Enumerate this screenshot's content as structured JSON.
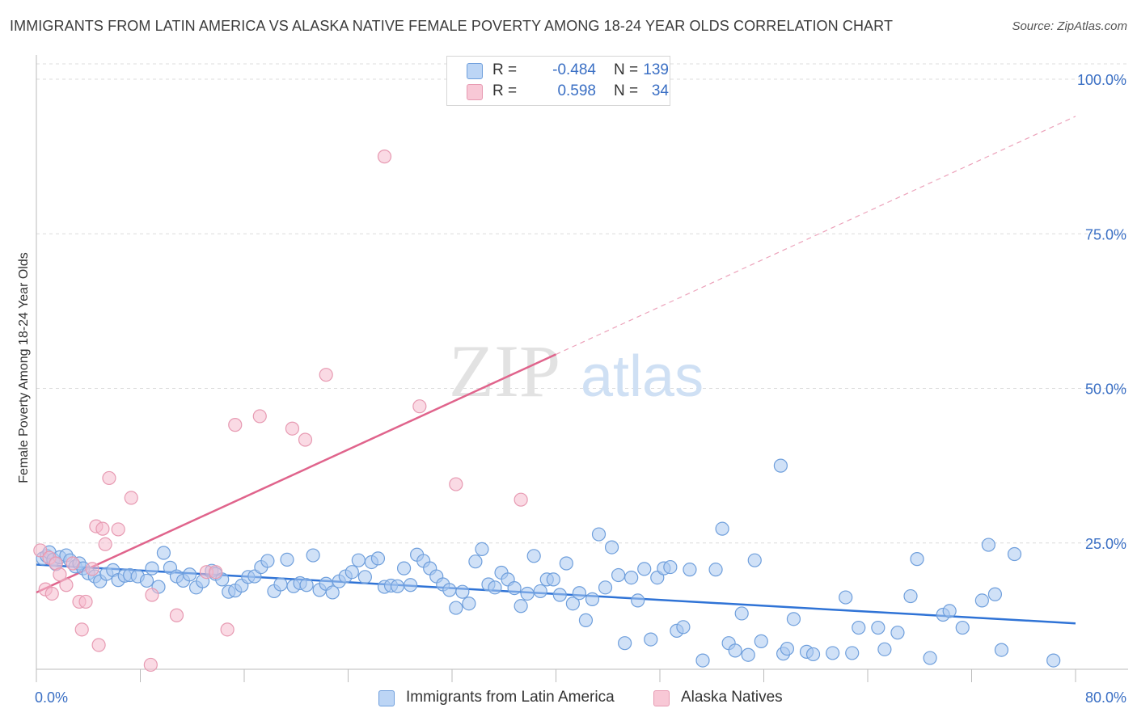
{
  "title": "IMMIGRANTS FROM LATIN AMERICA VS ALASKA NATIVE FEMALE POVERTY AMONG 18-24 YEAR OLDS CORRELATION CHART",
  "source": "Source: ZipAtlas.com",
  "watermark": {
    "zip": "ZIP",
    "atlas": "atlas"
  },
  "legend_top": {
    "rows": [
      {
        "r_label": "R =",
        "r_value": "-0.484",
        "n_label": "N =",
        "n_value": "139"
      },
      {
        "r_label": "R =",
        "r_value": "0.598",
        "n_label": "N =",
        "n_value": "34"
      }
    ]
  },
  "colors": {
    "blue_fill": "#a9c8f0",
    "blue_stroke": "#6f9fdc",
    "blue_line": "#2f73d6",
    "pink_fill": "#f6bccd",
    "pink_stroke": "#e79ab2",
    "pink_line": "#e0648c",
    "tick_label": "#3a6fc4",
    "grid": "#dcdcdc"
  },
  "chart_data": {
    "type": "scatter",
    "title": "IMMIGRANTS FROM LATIN AMERICA VS ALASKA NATIVE FEMALE POVERTY AMONG 18-24 YEAR OLDS CORRELATION CHART",
    "xlabel": "",
    "ylabel": "Female Poverty Among 18-24 Year Olds",
    "xlim": [
      0,
      80
    ],
    "ylim": [
      0,
      100
    ],
    "x_tick_labels": [
      "0.0%",
      "80.0%"
    ],
    "y_ticks": [
      25,
      50,
      75,
      100
    ],
    "y_tick_labels": [
      "25.0%",
      "50.0%",
      "75.0%",
      "100.0%"
    ],
    "grid": true,
    "legend_position": "bottom",
    "series": [
      {
        "name": "Immigrants from Latin America",
        "color": "#a9c8f0",
        "r": -0.484,
        "n": 139,
        "trend": {
          "x": [
            0,
            80
          ],
          "y": [
            21.5,
            12.0
          ]
        },
        "points": [
          [
            0.5,
            22.5
          ],
          [
            0.8,
            22.9
          ],
          [
            1.0,
            23.5
          ],
          [
            1.3,
            22.3
          ],
          [
            1.5,
            21.6
          ],
          [
            1.8,
            22.7
          ],
          [
            2.3,
            23.0
          ],
          [
            2.6,
            22.2
          ],
          [
            3.0,
            21.2
          ],
          [
            3.3,
            21.7
          ],
          [
            3.6,
            20.9
          ],
          [
            4.0,
            20.1
          ],
          [
            4.5,
            19.6
          ],
          [
            4.9,
            18.8
          ],
          [
            5.4,
            20.0
          ],
          [
            5.9,
            20.6
          ],
          [
            6.3,
            19.0
          ],
          [
            6.8,
            19.7
          ],
          [
            7.2,
            19.8
          ],
          [
            7.8,
            19.6
          ],
          [
            8.5,
            18.9
          ],
          [
            8.9,
            20.9
          ],
          [
            9.4,
            17.9
          ],
          [
            9.8,
            23.4
          ],
          [
            10.3,
            21.0
          ],
          [
            10.8,
            19.6
          ],
          [
            11.3,
            18.9
          ],
          [
            11.8,
            19.9
          ],
          [
            12.3,
            17.8
          ],
          [
            12.8,
            18.8
          ],
          [
            13.5,
            20.5
          ],
          [
            13.8,
            20.0
          ],
          [
            14.3,
            19.1
          ],
          [
            14.8,
            17.1
          ],
          [
            15.3,
            17.3
          ],
          [
            15.8,
            18.1
          ],
          [
            16.3,
            19.5
          ],
          [
            16.8,
            19.6
          ],
          [
            17.3,
            21.1
          ],
          [
            17.8,
            22.1
          ],
          [
            18.3,
            17.2
          ],
          [
            18.8,
            18.3
          ],
          [
            19.3,
            22.3
          ],
          [
            19.8,
            18.0
          ],
          [
            20.3,
            18.5
          ],
          [
            20.8,
            18.2
          ],
          [
            21.3,
            23.0
          ],
          [
            21.8,
            17.4
          ],
          [
            22.3,
            18.4
          ],
          [
            22.8,
            17.0
          ],
          [
            23.3,
            18.8
          ],
          [
            23.8,
            19.6
          ],
          [
            24.3,
            20.3
          ],
          [
            24.8,
            22.2
          ],
          [
            25.3,
            19.5
          ],
          [
            25.8,
            21.9
          ],
          [
            26.3,
            22.5
          ],
          [
            26.8,
            17.9
          ],
          [
            27.3,
            18.1
          ],
          [
            27.8,
            18.0
          ],
          [
            28.3,
            20.9
          ],
          [
            28.8,
            18.2
          ],
          [
            29.3,
            23.1
          ],
          [
            29.8,
            22.1
          ],
          [
            30.3,
            20.9
          ],
          [
            30.8,
            19.6
          ],
          [
            31.3,
            18.3
          ],
          [
            31.8,
            17.4
          ],
          [
            32.3,
            14.5
          ],
          [
            32.8,
            17.1
          ],
          [
            33.3,
            15.2
          ],
          [
            33.8,
            22.0
          ],
          [
            34.3,
            24.0
          ],
          [
            34.8,
            18.3
          ],
          [
            35.3,
            17.8
          ],
          [
            35.8,
            20.2
          ],
          [
            36.3,
            19.1
          ],
          [
            36.8,
            17.7
          ],
          [
            37.3,
            14.8
          ],
          [
            37.8,
            16.8
          ],
          [
            38.3,
            22.9
          ],
          [
            38.8,
            17.2
          ],
          [
            39.3,
            19.1
          ],
          [
            39.8,
            19.1
          ],
          [
            40.3,
            16.6
          ],
          [
            40.8,
            21.7
          ],
          [
            41.3,
            15.2
          ],
          [
            41.8,
            16.9
          ],
          [
            42.3,
            12.5
          ],
          [
            42.8,
            15.9
          ],
          [
            43.3,
            26.4
          ],
          [
            43.8,
            17.8
          ],
          [
            44.3,
            24.3
          ],
          [
            44.8,
            19.8
          ],
          [
            45.3,
            8.8
          ],
          [
            45.8,
            19.4
          ],
          [
            46.3,
            15.7
          ],
          [
            46.8,
            20.8
          ],
          [
            47.3,
            9.4
          ],
          [
            47.8,
            19.4
          ],
          [
            48.3,
            20.9
          ],
          [
            48.8,
            21.1
          ],
          [
            49.3,
            10.8
          ],
          [
            49.8,
            11.4
          ],
          [
            50.3,
            20.7
          ],
          [
            51.3,
            6.0
          ],
          [
            52.3,
            20.7
          ],
          [
            52.8,
            27.3
          ],
          [
            53.3,
            8.8
          ],
          [
            53.8,
            7.6
          ],
          [
            54.3,
            13.6
          ],
          [
            54.8,
            6.9
          ],
          [
            55.3,
            22.2
          ],
          [
            55.8,
            9.1
          ],
          [
            57.3,
            37.5
          ],
          [
            57.5,
            7.1
          ],
          [
            57.8,
            7.9
          ],
          [
            58.3,
            12.7
          ],
          [
            59.3,
            7.4
          ],
          [
            59.8,
            7.0
          ],
          [
            61.3,
            7.2
          ],
          [
            62.3,
            16.2
          ],
          [
            63.3,
            11.3
          ],
          [
            64.8,
            11.3
          ],
          [
            65.3,
            7.8
          ],
          [
            66.3,
            10.5
          ],
          [
            67.3,
            16.4
          ],
          [
            67.8,
            22.4
          ],
          [
            68.8,
            6.4
          ],
          [
            69.8,
            13.4
          ],
          [
            71.3,
            11.3
          ],
          [
            72.8,
            15.7
          ],
          [
            73.3,
            24.7
          ],
          [
            73.8,
            16.7
          ],
          [
            74.3,
            7.7
          ],
          [
            75.3,
            23.2
          ],
          [
            78.3,
            6.0
          ],
          [
            70.3,
            14.0
          ],
          [
            62.8,
            7.2
          ]
        ]
      },
      {
        "name": "Alaska Natives",
        "color": "#f6bccd",
        "r": 0.598,
        "n": 34,
        "trend": {
          "x": [
            0,
            80
          ],
          "y": [
            17.0,
            94.0
          ]
        },
        "points": [
          [
            0.3,
            23.8
          ],
          [
            0.7,
            17.5
          ],
          [
            1.0,
            22.6
          ],
          [
            1.2,
            16.8
          ],
          [
            1.5,
            21.7
          ],
          [
            1.8,
            19.9
          ],
          [
            2.3,
            18.2
          ],
          [
            2.8,
            21.7
          ],
          [
            3.3,
            15.5
          ],
          [
            3.5,
            11.0
          ],
          [
            3.8,
            15.5
          ],
          [
            4.3,
            20.8
          ],
          [
            4.6,
            27.7
          ],
          [
            4.8,
            8.5
          ],
          [
            5.1,
            27.3
          ],
          [
            5.3,
            24.8
          ],
          [
            5.6,
            35.5
          ],
          [
            6.3,
            27.2
          ],
          [
            7.3,
            32.3
          ],
          [
            8.8,
            5.3
          ],
          [
            8.9,
            16.6
          ],
          [
            10.8,
            13.3
          ],
          [
            13.1,
            20.3
          ],
          [
            13.8,
            20.3
          ],
          [
            14.7,
            11.0
          ],
          [
            15.3,
            44.1
          ],
          [
            17.2,
            45.5
          ],
          [
            19.7,
            43.5
          ],
          [
            20.7,
            41.7
          ],
          [
            22.3,
            52.2
          ],
          [
            26.8,
            87.5
          ],
          [
            29.5,
            47.1
          ],
          [
            32.3,
            34.5
          ],
          [
            37.3,
            32.0
          ]
        ]
      }
    ]
  }
}
